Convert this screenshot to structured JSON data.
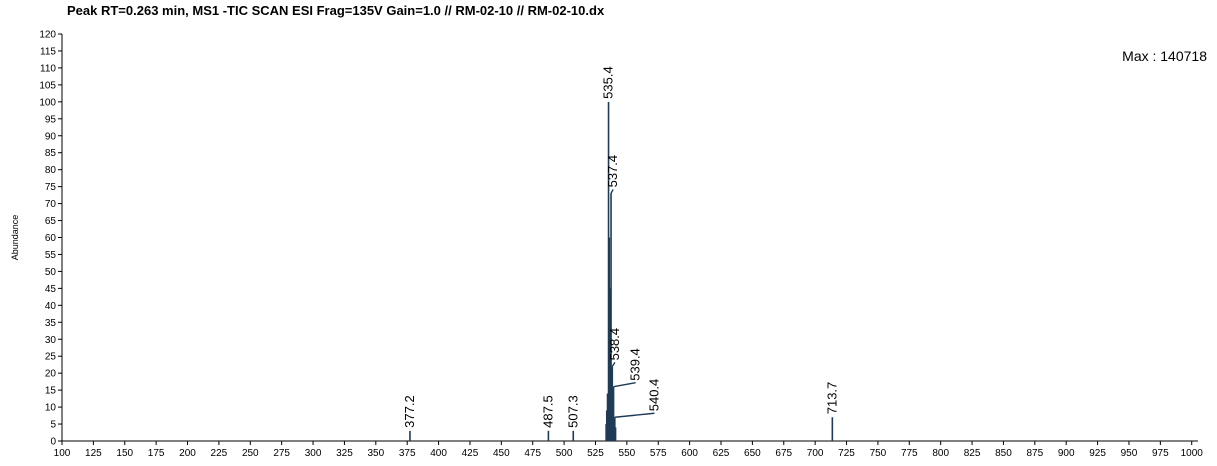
{
  "chart_data": {
    "type": "bar",
    "title": "Peak RT=0.263 min, MS1 -TIC SCAN ESI Frag=135V Gain=1.0 // RM-02-10 // RM-02-10.dx",
    "annotation": "Max : 140718",
    "xlabel": "",
    "ylabel": "Abundance",
    "xlim": [
      100,
      1005
    ],
    "ylim": [
      0,
      120
    ],
    "xticks": [
      100,
      125,
      150,
      175,
      200,
      225,
      250,
      275,
      300,
      325,
      350,
      375,
      400,
      425,
      450,
      475,
      500,
      525,
      550,
      575,
      600,
      625,
      650,
      675,
      700,
      725,
      750,
      775,
      800,
      825,
      850,
      875,
      900,
      925,
      950,
      975,
      1000
    ],
    "yticks": [
      0,
      5,
      10,
      15,
      20,
      25,
      30,
      35,
      40,
      45,
      50,
      55,
      60,
      65,
      70,
      75,
      80,
      85,
      90,
      95,
      100,
      105,
      110,
      115,
      120
    ],
    "grid": false,
    "legend": "none",
    "bar_color": "#1f3b55",
    "peaks": [
      {
        "x": 377.2,
        "y": 3,
        "label": "377.2",
        "label_x": 377.2
      },
      {
        "x": 487.5,
        "y": 3,
        "label": "487.5",
        "label_x": 487.5
      },
      {
        "x": 507.3,
        "y": 3,
        "label": "507.3",
        "label_x": 507.3
      },
      {
        "x": 535.4,
        "y": 100,
        "label": "535.4",
        "label_x": 535.4
      },
      {
        "x": 537.4,
        "y": 73,
        "label": "537.4",
        "label_x": 539.0
      },
      {
        "x": 538.4,
        "y": 22,
        "label": "538.4",
        "label_x": 540.5
      },
      {
        "x": 539.4,
        "y": 16,
        "label": "539.4",
        "label_x": 557.0
      },
      {
        "x": 540.4,
        "y": 7,
        "label": "540.4",
        "label_x": 572.0
      },
      {
        "x": 713.7,
        "y": 7,
        "label": "713.7",
        "label_x": 713.7
      }
    ],
    "minor_peaks": [
      {
        "x": 533.5,
        "y": 5
      },
      {
        "x": 534.0,
        "y": 9
      },
      {
        "x": 534.6,
        "y": 14
      },
      {
        "x": 536.0,
        "y": 60
      },
      {
        "x": 536.6,
        "y": 45
      },
      {
        "x": 538.9,
        "y": 12
      },
      {
        "x": 541.0,
        "y": 4
      }
    ]
  }
}
